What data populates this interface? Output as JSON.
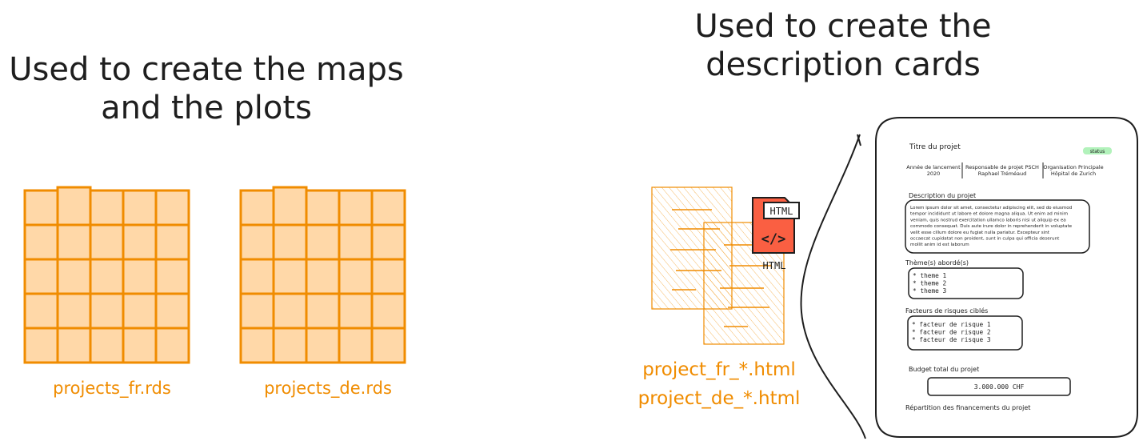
{
  "left_title": {
    "line1": "Used to create the maps",
    "line2": "and the plots"
  },
  "right_title": {
    "line1": "Used to create the",
    "line2": "description cards"
  },
  "datasets": [
    {
      "label": "projects_fr.rds"
    },
    {
      "label": "projects_de.rds"
    }
  ],
  "html_files": {
    "badge": "HTML",
    "icon_glyph": "</>",
    "caption": "HTML",
    "label_fr": "project_fr_*.html",
    "label_de": "project_de_*.html"
  },
  "card": {
    "title": "Titre du projet",
    "status": "status",
    "meta": [
      {
        "line1": "Année de lancement",
        "line2": "2020"
      },
      {
        "line1": "Responsable de projet PSCH",
        "line2": "Raphael Tréméaud"
      },
      {
        "line1": "Organisation Principale",
        "line2": "Hôpital de Zurich"
      }
    ],
    "description_heading": "Description du projet",
    "description_lines": [
      "Lorem ipsum dolor sit amet, consectetur adipiscing elit, sed do eiusmod",
      "tempor incididunt ut labore et dolore magna aliqua. Ut enim ad minim",
      "veniam, quis nostrud exercitation ullamco laboris nisi ut aliquip ex ea",
      "commodo consequat. Duis aute irure dolor in reprehenderit in voluptate",
      "velit esse cillum dolore eu fugiat nulla pariatur. Excepteur sint",
      "occaecat cupidatat non proident, sunt in culpa qui officia deserunt",
      "mollit anim id est laborum"
    ],
    "themes_heading": "Thème(s) abordé(s)",
    "themes": [
      "* theme 1",
      "* theme 2",
      "* theme 3"
    ],
    "risks_heading": "Facteurs de risques ciblés",
    "risks": [
      "* facteur de risque 1",
      "* facteur de risque 2",
      "* facteur de risque 3"
    ],
    "budget_heading": "Budget total du projet",
    "budget_value": "3.000.000 CHF",
    "funding_heading": "Répartition des financements du projet"
  },
  "colors": {
    "ink": "#1e1e1e",
    "orange": "#f08c00",
    "orange_fill": "#ffd8a8",
    "html_red": "#fa5f42",
    "status_green": "#b2f2bb"
  }
}
